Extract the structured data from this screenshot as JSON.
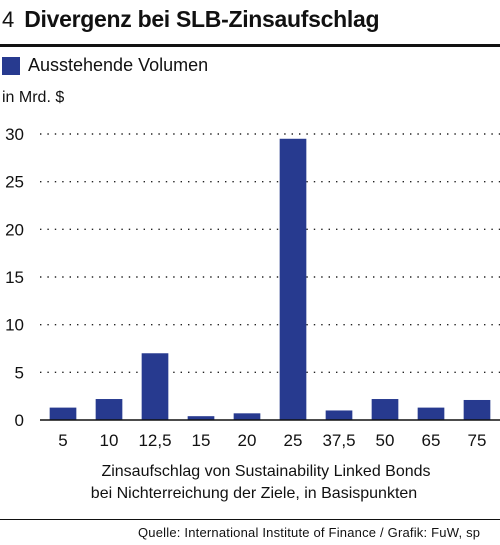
{
  "header": {
    "figure_number": "4",
    "title": "Divergenz bei SLB-Zinsaufschlag"
  },
  "legend": {
    "label": "Ausstehende Volumen",
    "color": "#273a8f"
  },
  "unit_label": "in Mrd. $",
  "xlabel_lines": [
    "Zinsaufschlag von Sustainability Linked Bonds",
    "bei Nichterreichung der Ziele, in Basispunkten"
  ],
  "source": "Quelle: International Institute of Finance / Grafik: FuW, sp",
  "chart_data": {
    "type": "bar",
    "categories": [
      "5",
      "10",
      "12,5",
      "15",
      "20",
      "25",
      "37,5",
      "50",
      "65",
      "75"
    ],
    "series": [
      {
        "name": "Ausstehende Volumen",
        "values": [
          1.3,
          2.2,
          7.0,
          0.4,
          0.7,
          29.5,
          1.0,
          2.2,
          1.3,
          2.1
        ]
      }
    ],
    "ylim": [
      0,
      30
    ],
    "yticks": [
      0,
      5,
      10,
      15,
      20,
      25,
      30
    ],
    "grid": true,
    "legend_position": "top-left"
  }
}
